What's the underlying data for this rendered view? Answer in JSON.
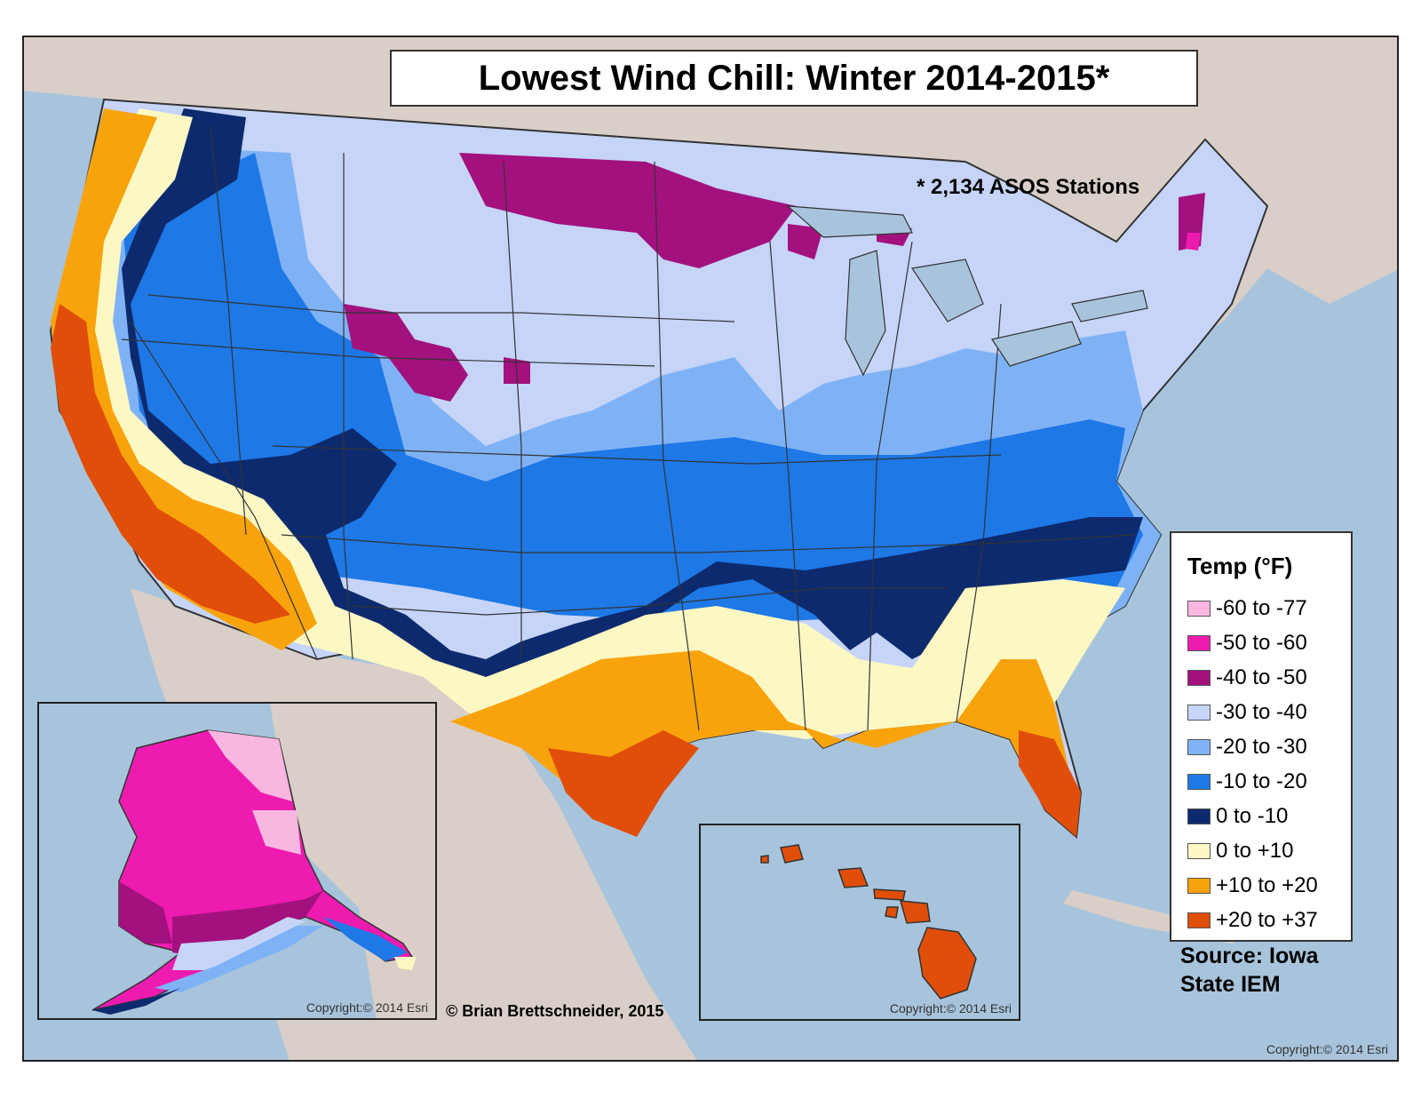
{
  "title": "Lowest Wind Chill: Winter 2014-2015*",
  "stations_note": "* 2,134 ASOS Stations",
  "credit": "© Brian Brettschneider, 2015",
  "copyright": "Copyright:© 2014 Esri",
  "source": "Source: Iowa State IEM",
  "legend": {
    "title": "Temp (°F)",
    "items": [
      {
        "label": "-60 to -77",
        "color": "#f9b6e0"
      },
      {
        "label": "-50 to -60",
        "color": "#ee1bb0"
      },
      {
        "label": "-40 to -50",
        "color": "#a3117e"
      },
      {
        "label": "-30 to -40",
        "color": "#c6d4f8"
      },
      {
        "label": "-20 to -30",
        "color": "#7fb2f5"
      },
      {
        "label": "-10 to -20",
        "color": "#1e78e6"
      },
      {
        "label": "0 to -10",
        "color": "#0d2a6e"
      },
      {
        "label": "0 to +10",
        "color": "#fcf8c4"
      },
      {
        "label": "+10 to +20",
        "color": "#f9a30c"
      },
      {
        "label": "+20 to +37",
        "color": "#e04e0a"
      }
    ]
  },
  "colors": {
    "ocean": "#a8c4dc",
    "land": "#d9cfc8",
    "border": "#333333"
  }
}
